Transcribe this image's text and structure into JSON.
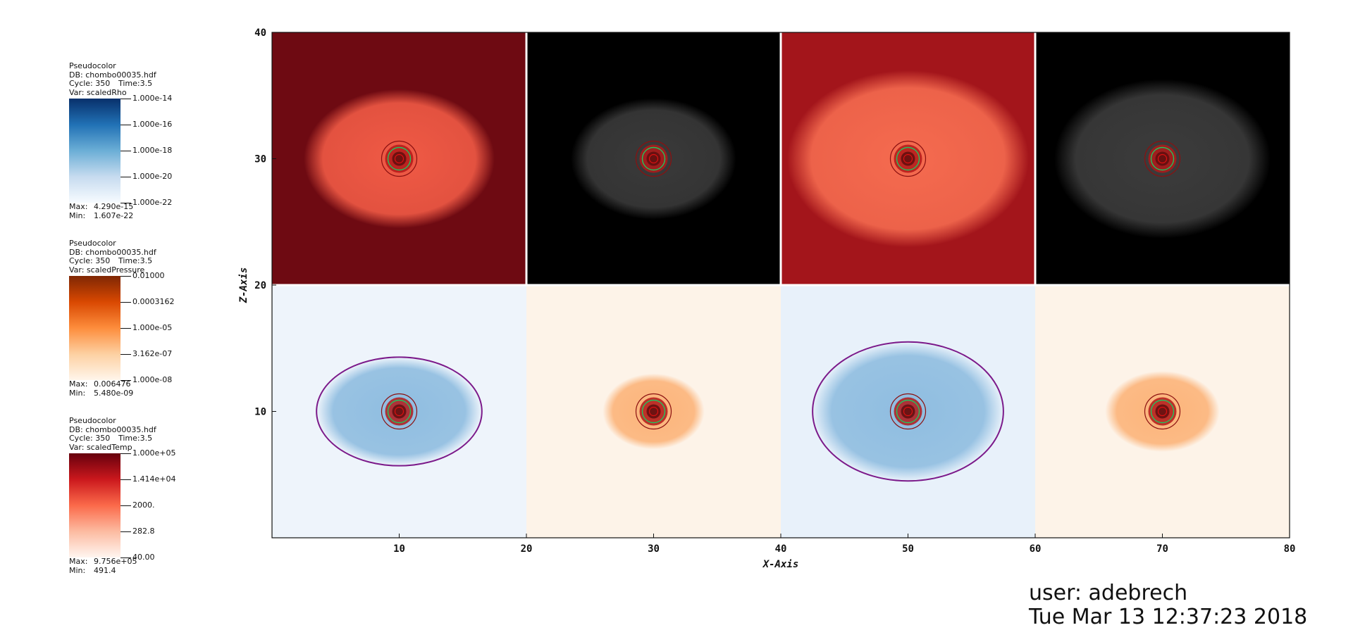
{
  "legends": [
    {
      "plot_type": "Pseudocolor",
      "db": "DB: chombo00035.hdf",
      "cycle": "Cycle: 350",
      "time": "Time:3.5",
      "var": "Var: scaledRho",
      "ticks": [
        "1.000e-14",
        "1.000e-16",
        "1.000e-18",
        "1.000e-20",
        "1.000e-22"
      ],
      "max_label": "Max:",
      "max_value": "4.290e-15",
      "min_label": "Min:",
      "min_value": "1.607e-22",
      "colormap": [
        "#08306b",
        "#2171b5",
        "#6baed6",
        "#c6dbef",
        "#f7fbff"
      ]
    },
    {
      "plot_type": "Pseudocolor",
      "db": "DB: chombo00035.hdf",
      "cycle": "Cycle: 350",
      "time": "Time:3.5",
      "var": "Var: scaledPressure",
      "ticks": [
        "0.01000",
        "0.0003162",
        "1.000e-05",
        "3.162e-07",
        "1.000e-08"
      ],
      "max_label": "Max:",
      "max_value": "0.006476",
      "min_label": "Min:",
      "min_value": "5.480e-09",
      "colormap": [
        "#7f2704",
        "#d94801",
        "#fd8d3c",
        "#fdd0a2",
        "#fff5eb"
      ]
    },
    {
      "plot_type": "Pseudocolor",
      "db": "DB: chombo00035.hdf",
      "cycle": "Cycle: 350",
      "time": "Time:3.5",
      "var": "Var: scaledTemp",
      "ticks": [
        "1.000e+05",
        "1.414e+04",
        "2000.",
        "282.8",
        "40.00"
      ],
      "max_label": "Max:",
      "max_value": "9.756e+05",
      "min_label": "Min:",
      "min_value": "491.4",
      "colormap": [
        "#67000d",
        "#cb181d",
        "#fb6a4a",
        "#fcbba1",
        "#fff5f0"
      ]
    }
  ],
  "chart_data": {
    "type": "heatmap",
    "xlabel": "X-Axis",
    "ylabel": "Z-Axis",
    "xlim": [
      0,
      80
    ],
    "ylim": [
      0,
      40
    ],
    "x_ticks": [
      10,
      20,
      30,
      40,
      50,
      60,
      70,
      80
    ],
    "y_ticks": [
      10,
      20,
      30,
      40
    ],
    "panels": [
      {
        "variable": "scaledTemp",
        "x_range": [
          0,
          20
        ],
        "z_range": [
          20,
          40
        ],
        "background": "#6e0a12",
        "blob": {
          "cx": 10,
          "cz": 30,
          "rx": 7.5,
          "rz": 5.5,
          "color": "#f05a45"
        }
      },
      {
        "variable": "scaledRho",
        "x_range": [
          20,
          40
        ],
        "z_range": [
          20,
          40
        ],
        "background": "#000000",
        "blob": {
          "cx": 30,
          "cz": 30,
          "rx": 6.5,
          "rz": 4.8,
          "color": "#3a3a3a"
        }
      },
      {
        "variable": "scaledTemp",
        "x_range": [
          40,
          60
        ],
        "z_range": [
          20,
          40
        ],
        "background": "#a3151b",
        "blob": {
          "cx": 50,
          "cz": 30,
          "rx": 9.5,
          "rz": 7,
          "color": "#f56b4f"
        }
      },
      {
        "variable": "scaledRho",
        "x_range": [
          60,
          80
        ],
        "z_range": [
          20,
          40
        ],
        "background": "#000000",
        "blob": {
          "cx": 70,
          "cz": 30,
          "rx": 8.5,
          "rz": 6.3,
          "color": "#3c3c3c"
        }
      },
      {
        "variable": "scaledRho",
        "x_range": [
          0,
          20
        ],
        "z_range": [
          0,
          20
        ],
        "background": "#eef4fb",
        "blob": {
          "cx": 10,
          "cz": 10,
          "rx": 6.5,
          "rz": 4.3,
          "color": "#8fbde0"
        }
      },
      {
        "variable": "scaledPressure",
        "x_range": [
          20,
          40
        ],
        "z_range": [
          0,
          20
        ],
        "background": "#fdf3e8",
        "blob": {
          "cx": 30,
          "cz": 10,
          "rx": 4,
          "rz": 3,
          "color": "#fcb47a"
        }
      },
      {
        "variable": "scaledRho",
        "x_range": [
          40,
          60
        ],
        "z_range": [
          0,
          20
        ],
        "background": "#e8f1fa",
        "blob": {
          "cx": 50,
          "cz": 10,
          "rx": 7.5,
          "rz": 5.5,
          "color": "#8fbde0"
        }
      },
      {
        "variable": "scaledPressure",
        "x_range": [
          60,
          80
        ],
        "z_range": [
          0,
          20
        ],
        "background": "#fdf3e8",
        "blob": {
          "cx": 70,
          "cz": 10,
          "rx": 4.5,
          "rz": 3.2,
          "color": "#fcb47a"
        }
      }
    ],
    "sources": [
      {
        "x": 10,
        "z": 30
      },
      {
        "x": 30,
        "z": 30
      },
      {
        "x": 50,
        "z": 30
      },
      {
        "x": 70,
        "z": 30
      },
      {
        "x": 10,
        "z": 10
      },
      {
        "x": 30,
        "z": 10
      },
      {
        "x": 50,
        "z": 10
      },
      {
        "x": 70,
        "z": 10
      }
    ],
    "contour_color": "#7b1a8a",
    "grid": false
  },
  "footer": {
    "user": "user: adebrech",
    "timestamp": "Tue Mar 13 12:37:23 2018"
  }
}
